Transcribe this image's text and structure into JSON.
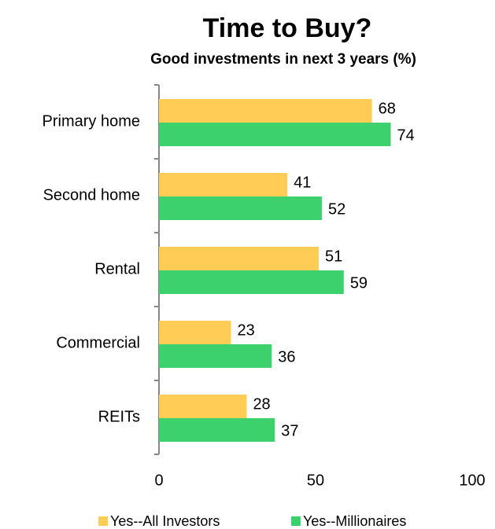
{
  "chart_data": {
    "type": "bar",
    "orientation": "horizontal",
    "title": "Time to Buy?",
    "subtitle": "Good investments in next 3 years (%)",
    "categories": [
      "Primary home",
      "Second home",
      "Rental",
      "Commercial",
      "REITs"
    ],
    "series": [
      {
        "name": "Yes--All Investors",
        "color": "#ffcc55",
        "values": [
          68,
          41,
          51,
          23,
          28
        ]
      },
      {
        "name": "Yes--Millionaires",
        "color": "#3dd16e",
        "values": [
          74,
          52,
          59,
          36,
          37
        ]
      }
    ],
    "xlim": [
      0,
      100
    ],
    "xticks": [
      0,
      50,
      100
    ],
    "legend": "bottom"
  }
}
